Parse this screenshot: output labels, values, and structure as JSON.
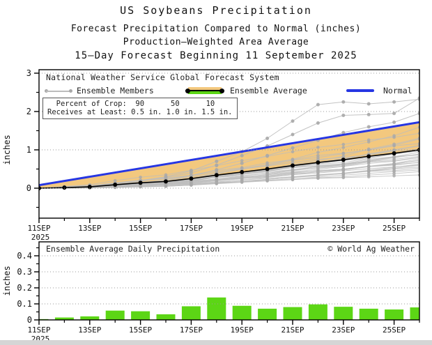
{
  "header": {
    "title": "US Soybeans Precipitation",
    "subtitle1": "Forecast Precipitation Compared to Normal (inches)",
    "subtitle2": "Production–Weighted Area Average",
    "subtitle3": "15–Day Forecast Beginning 11 September 2025"
  },
  "legend": {
    "system_label": "National Weather Service Global Forecast System",
    "members_label": "Ensemble Members",
    "average_label": "Ensemble Average",
    "normal_label": "Normal"
  },
  "crop_table": {
    "row1": "  Percent of Crop:  90      50      10",
    "row2": "Receives at Least: 0.5 in. 1.0 in. 1.5 in."
  },
  "colors": {
    "normal_blue": "#2636e3",
    "deficit_orange": "#f3c87e",
    "surplus_green": "#5cd615",
    "bar_green": "#5cd615",
    "member_gray_line": "#bdbdbd",
    "member_gray_dot": "#a9a9a9",
    "average_black": "#000000",
    "grid_gray": "#9a9a9a",
    "frame_black": "#000000"
  },
  "chart_data": [
    {
      "type": "line",
      "name": "accumulated-precipitation-forecast",
      "ylabel": "inches",
      "ylim": [
        -0.78,
        3.09
      ],
      "yticks": [
        0,
        1,
        2,
        3
      ],
      "grid": true,
      "legend_position": "top-inside",
      "x_days": [
        11,
        12,
        13,
        14,
        15,
        16,
        17,
        18,
        19,
        20,
        21,
        22,
        23,
        24,
        25,
        26
      ],
      "x_tick_labels": [
        "11SEP",
        "13SEP",
        "15SEP",
        "17SEP",
        "19SEP",
        "21SEP",
        "23SEP",
        "25SEP"
      ],
      "x_tick_days": [
        11,
        13,
        15,
        17,
        19,
        21,
        23,
        25
      ],
      "x_minor_days": [
        12,
        14,
        16,
        18,
        20,
        22,
        24,
        26
      ],
      "x_first_label_year": "2025",
      "series": [
        {
          "name": "Normal",
          "color": "#2636e3",
          "x": [
            11,
            26
          ],
          "values": [
            0.08,
            1.72
          ]
        },
        {
          "name": "Ensemble Average",
          "color": "#000000",
          "values": [
            0.0,
            0.015,
            0.035,
            0.09,
            0.14,
            0.175,
            0.25,
            0.34,
            0.42,
            0.5,
            0.59,
            0.67,
            0.74,
            0.83,
            0.91,
            1.0
          ]
        },
        {
          "name": "Ensemble Members",
          "color": "#bdbdbd",
          "final_values": [
            0.35,
            0.42,
            0.48,
            0.52,
            0.55,
            0.58,
            0.6,
            0.63,
            0.66,
            0.68,
            0.7,
            0.72,
            0.75,
            0.78,
            0.8,
            0.83,
            0.86,
            0.88,
            0.9,
            0.93,
            0.96,
            1.0,
            1.04,
            1.08,
            1.12,
            1.18,
            1.25,
            1.32,
            1.45,
            1.6
          ],
          "outlier_curves": [
            [
              0.0,
              0.02,
              0.05,
              0.12,
              0.2,
              0.3,
              0.45,
              0.7,
              0.95,
              1.3,
              1.75,
              2.18,
              2.25,
              2.2,
              2.25,
              2.32
            ],
            [
              0.0,
              0.02,
              0.04,
              0.1,
              0.18,
              0.28,
              0.4,
              0.6,
              0.85,
              1.1,
              1.4,
              1.7,
              1.9,
              1.92,
              1.95,
              2.35
            ],
            [
              0.0,
              0.01,
              0.03,
              0.08,
              0.14,
              0.22,
              0.32,
              0.48,
              0.65,
              0.85,
              1.05,
              1.25,
              1.45,
              1.6,
              1.72,
              1.95
            ]
          ]
        }
      ],
      "band": {
        "between": [
          "Normal",
          "Ensemble Average"
        ],
        "deficit_color": "#f3c87e",
        "surplus_color": "#5cd615"
      }
    },
    {
      "type": "bar",
      "name": "ensemble-average-daily-precipitation",
      "title": "Ensemble Average Daily Precipitation",
      "credit": "© World Ag Weather",
      "ylabel": "inches",
      "ylim": [
        0,
        0.47
      ],
      "yticks": [
        0,
        0.1,
        0.2,
        0.3,
        0.4
      ],
      "ytick_labels": [
        "0",
        "0.1",
        "0.2",
        "0.3",
        "0.4"
      ],
      "grid": true,
      "days": [
        11,
        12,
        13,
        14,
        15,
        16,
        17,
        18,
        19,
        20,
        21,
        22,
        23,
        24,
        25,
        26
      ],
      "values": [
        0.005,
        0.015,
        0.022,
        0.058,
        0.054,
        0.035,
        0.085,
        0.14,
        0.088,
        0.07,
        0.08,
        0.097,
        0.082,
        0.07,
        0.065,
        0.078
      ],
      "x_tick_labels": [
        "11SEP",
        "13SEP",
        "15SEP",
        "17SEP",
        "19SEP",
        "21SEP",
        "23SEP",
        "25SEP"
      ],
      "x_tick_days": [
        11,
        13,
        15,
        17,
        19,
        21,
        23,
        25
      ],
      "x_minor_days": [
        12,
        14,
        16,
        18,
        20,
        22,
        24,
        26
      ],
      "x_first_label_year": "2025"
    }
  ]
}
